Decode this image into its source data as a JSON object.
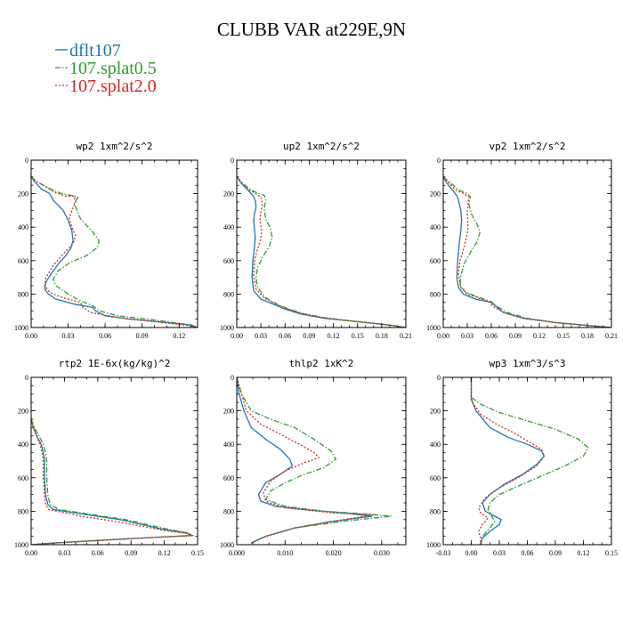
{
  "title": "CLUBB VAR at229E,9N",
  "legend": [
    {
      "label": "dflt107",
      "color": "#1f77b4",
      "dash": "solid"
    },
    {
      "label": "107.splat0.5",
      "color": "#2ca02c",
      "dash": "dashdot"
    },
    {
      "label": "107.splat2.0",
      "color": "#d62728",
      "dash": "dotted"
    }
  ],
  "chart_data": [
    {
      "type": "line",
      "title": "wp2  1xm^2/s^2",
      "xlim": [
        0,
        0.135
      ],
      "xticks": [
        "0.00",
        "0.03",
        "0.06",
        "0.09",
        "0.12"
      ],
      "xtick_values": [
        0,
        0.03,
        0.06,
        0.09,
        0.12
      ],
      "ylim": [
        1000,
        0
      ],
      "yticks": [
        "0",
        "200",
        "400",
        "600",
        "800",
        "1000"
      ],
      "series": [
        {
          "name": "dflt107",
          "x": [
            0.0,
            0.003,
            0.008,
            0.015,
            0.018,
            0.022,
            0.026,
            0.03,
            0.033,
            0.034,
            0.032,
            0.028,
            0.022,
            0.016,
            0.012,
            0.011,
            0.014,
            0.02,
            0.035,
            0.05,
            0.052,
            0.06,
            0.08,
            0.11,
            0.13,
            0.135
          ],
          "y": [
            100,
            130,
            170,
            200,
            240,
            270,
            300,
            360,
            420,
            480,
            530,
            570,
            620,
            680,
            730,
            770,
            800,
            830,
            860,
            880,
            900,
            930,
            950,
            970,
            985,
            1000
          ]
        },
        {
          "name": "107.splat0.5",
          "x": [
            0.0,
            0.005,
            0.015,
            0.025,
            0.032,
            0.038,
            0.035,
            0.04,
            0.05,
            0.055,
            0.054,
            0.045,
            0.032,
            0.022,
            0.018,
            0.02,
            0.03,
            0.04,
            0.05,
            0.055,
            0.07,
            0.1,
            0.125,
            0.135
          ],
          "y": [
            100,
            130,
            170,
            200,
            210,
            220,
            260,
            350,
            430,
            480,
            520,
            570,
            610,
            660,
            710,
            750,
            800,
            840,
            870,
            900,
            930,
            955,
            980,
            1000
          ]
        },
        {
          "name": "107.splat2.0",
          "x": [
            0.0,
            0.004,
            0.012,
            0.02,
            0.028,
            0.035,
            0.036,
            0.033,
            0.031,
            0.033,
            0.036,
            0.034,
            0.026,
            0.018,
            0.012,
            0.011,
            0.015,
            0.025,
            0.04,
            0.042,
            0.048,
            0.07,
            0.1,
            0.13,
            0.135
          ],
          "y": [
            100,
            125,
            160,
            195,
            215,
            215,
            250,
            300,
            350,
            400,
            450,
            500,
            560,
            630,
            700,
            750,
            790,
            820,
            850,
            880,
            910,
            940,
            965,
            990,
            1000
          ]
        }
      ]
    },
    {
      "type": "line",
      "title": "up2  1xm^2/s^2",
      "xlim": [
        0,
        0.21
      ],
      "xticks": [
        "0.00",
        "0.03",
        "0.06",
        "0.09",
        "0.12",
        "0.15",
        "0.18",
        "0.21"
      ],
      "xtick_values": [
        0,
        0.03,
        0.06,
        0.09,
        0.12,
        0.15,
        0.18,
        0.21
      ],
      "ylim": [
        1000,
        0
      ],
      "yticks": [
        "0",
        "200",
        "400",
        "600",
        "800",
        "1000"
      ],
      "series": [
        {
          "name": "dflt107",
          "x": [
            0.0,
            0.006,
            0.014,
            0.02,
            0.023,
            0.024,
            0.022,
            0.021,
            0.022,
            0.023,
            0.022,
            0.02,
            0.019,
            0.021,
            0.03,
            0.045,
            0.06,
            0.08,
            0.11,
            0.15,
            0.19,
            0.21
          ],
          "y": [
            100,
            140,
            180,
            210,
            240,
            280,
            320,
            360,
            410,
            460,
            520,
            600,
            700,
            780,
            830,
            860,
            890,
            920,
            945,
            965,
            985,
            1000
          ]
        },
        {
          "name": "107.splat0.5",
          "x": [
            0.0,
            0.008,
            0.018,
            0.028,
            0.034,
            0.036,
            0.034,
            0.036,
            0.042,
            0.044,
            0.04,
            0.032,
            0.026,
            0.024,
            0.026,
            0.035,
            0.05,
            0.065,
            0.085,
            0.115,
            0.155,
            0.19,
            0.21
          ],
          "y": [
            100,
            140,
            180,
            200,
            210,
            240,
            290,
            350,
            410,
            460,
            520,
            580,
            640,
            700,
            760,
            820,
            860,
            890,
            920,
            945,
            968,
            986,
            1000
          ]
        },
        {
          "name": "107.splat2.0",
          "x": [
            0.0,
            0.007,
            0.016,
            0.024,
            0.03,
            0.032,
            0.03,
            0.029,
            0.031,
            0.03,
            0.026,
            0.022,
            0.021,
            0.024,
            0.033,
            0.046,
            0.06,
            0.08,
            0.11,
            0.15,
            0.19,
            0.21
          ],
          "y": [
            100,
            140,
            180,
            200,
            220,
            260,
            310,
            360,
            420,
            470,
            530,
            600,
            690,
            770,
            820,
            855,
            885,
            915,
            943,
            965,
            985,
            1000
          ]
        }
      ]
    },
    {
      "type": "line",
      "title": "vp2  1xm^2/s^2",
      "xlim": [
        0,
        0.21
      ],
      "xticks": [
        "0.00",
        "0.03",
        "0.06",
        "0.09",
        "0.12",
        "0.15",
        "0.18",
        "0.21"
      ],
      "xtick_values": [
        0,
        0.03,
        0.06,
        0.09,
        0.12,
        0.15,
        0.18,
        0.21
      ],
      "ylim": [
        1000,
        0
      ],
      "yticks": [
        "0",
        "200",
        "400",
        "600",
        "800",
        "1000"
      ],
      "series": [
        {
          "name": "dflt107",
          "x": [
            0.0,
            0.005,
            0.012,
            0.018,
            0.02,
            0.022,
            0.023,
            0.022,
            0.02,
            0.018,
            0.017,
            0.019,
            0.025,
            0.04,
            0.06,
            0.065,
            0.075,
            0.1,
            0.14,
            0.18,
            0.21
          ],
          "y": [
            100,
            140,
            180,
            220,
            260,
            300,
            360,
            420,
            500,
            600,
            700,
            760,
            800,
            830,
            850,
            870,
            910,
            945,
            970,
            988,
            1000
          ]
        },
        {
          "name": "107.splat0.5",
          "x": [
            0.0,
            0.01,
            0.02,
            0.03,
            0.034,
            0.032,
            0.035,
            0.042,
            0.046,
            0.042,
            0.034,
            0.026,
            0.022,
            0.021,
            0.028,
            0.045,
            0.06,
            0.066,
            0.08,
            0.105,
            0.14,
            0.18,
            0.21
          ],
          "y": [
            100,
            140,
            180,
            200,
            220,
            260,
            320,
            380,
            430,
            490,
            550,
            620,
            690,
            750,
            790,
            820,
            845,
            870,
            910,
            945,
            970,
            988,
            1000
          ]
        },
        {
          "name": "107.splat2.0",
          "x": [
            0.0,
            0.008,
            0.016,
            0.026,
            0.032,
            0.031,
            0.03,
            0.031,
            0.03,
            0.026,
            0.021,
            0.019,
            0.022,
            0.03,
            0.045,
            0.058,
            0.064,
            0.078,
            0.1,
            0.14,
            0.18,
            0.21
          ],
          "y": [
            100,
            140,
            180,
            200,
            220,
            260,
            320,
            380,
            440,
            520,
            600,
            680,
            760,
            800,
            825,
            850,
            880,
            915,
            945,
            970,
            988,
            1000
          ]
        }
      ]
    },
    {
      "type": "line",
      "title": "rtp2  1E-6x(kg/kg)^2",
      "xlim": [
        0,
        0.15
      ],
      "xticks": [
        "0.00",
        "0.03",
        "0.06",
        "0.09",
        "0.12",
        "0.15"
      ],
      "xtick_values": [
        0,
        0.03,
        0.06,
        0.09,
        0.12,
        0.15
      ],
      "ylim": [
        1000,
        0
      ],
      "yticks": [
        "0",
        "200",
        "400",
        "600",
        "800",
        "1000"
      ],
      "series": [
        {
          "name": "dflt107",
          "x": [
            0.0,
            0.002,
            0.005,
            0.009,
            0.011,
            0.012,
            0.012,
            0.013,
            0.015,
            0.02,
            0.05,
            0.08,
            0.1,
            0.12,
            0.14,
            0.145,
            0.1,
            0.06,
            0.02,
            0.0
          ],
          "y": [
            250,
            300,
            350,
            400,
            450,
            500,
            600,
            700,
            760,
            790,
            820,
            850,
            880,
            910,
            930,
            945,
            960,
            975,
            990,
            1000
          ]
        },
        {
          "name": "107.splat0.5",
          "x": [
            0.0,
            0.003,
            0.007,
            0.011,
            0.013,
            0.014,
            0.014,
            0.015,
            0.017,
            0.025,
            0.055,
            0.085,
            0.105,
            0.125,
            0.142,
            0.146,
            0.1,
            0.06,
            0.02,
            0.0
          ],
          "y": [
            250,
            300,
            350,
            400,
            450,
            500,
            600,
            700,
            760,
            790,
            820,
            850,
            880,
            910,
            930,
            945,
            960,
            975,
            990,
            1000
          ]
        },
        {
          "name": "107.splat2.0",
          "x": [
            0.0,
            0.002,
            0.005,
            0.008,
            0.01,
            0.011,
            0.011,
            0.012,
            0.013,
            0.016,
            0.045,
            0.075,
            0.1,
            0.12,
            0.14,
            0.145,
            0.1,
            0.06,
            0.02,
            0.0
          ],
          "y": [
            250,
            300,
            350,
            400,
            450,
            500,
            600,
            700,
            760,
            790,
            830,
            860,
            890,
            915,
            932,
            945,
            960,
            975,
            990,
            1000
          ]
        }
      ]
    },
    {
      "type": "line",
      "title": "thlp2  1xK^2",
      "xlim": [
        0,
        0.035
      ],
      "xticks": [
        "0.000",
        "0.010",
        "0.020",
        "0.030"
      ],
      "xtick_values": [
        0,
        0.01,
        0.02,
        0.03
      ],
      "ylim": [
        1000,
        0
      ],
      "yticks": [
        "0",
        "200",
        "400",
        "600",
        "800",
        "1000"
      ],
      "series": [
        {
          "name": "dflt107",
          "x": [
            0.0,
            0.0005,
            0.0015,
            0.003,
            0.006,
            0.009,
            0.011,
            0.0115,
            0.009,
            0.006,
            0.0045,
            0.005,
            0.008,
            0.014,
            0.022,
            0.028,
            0.02,
            0.012,
            0.006,
            0.003
          ],
          "y": [
            0,
            100,
            200,
            300,
            370,
            430,
            490,
            530,
            580,
            630,
            700,
            740,
            770,
            790,
            810,
            830,
            860,
            900,
            950,
            990
          ]
        },
        {
          "name": "107.splat0.5",
          "x": [
            0.0,
            0.001,
            0.003,
            0.007,
            0.012,
            0.016,
            0.0195,
            0.0205,
            0.018,
            0.014,
            0.01,
            0.007,
            0.006,
            0.01,
            0.018,
            0.026,
            0.032,
            0.022,
            0.012,
            0.006,
            0.003
          ],
          "y": [
            0,
            100,
            200,
            250,
            300,
            370,
            440,
            490,
            540,
            580,
            630,
            680,
            730,
            770,
            800,
            815,
            830,
            860,
            900,
            950,
            990
          ]
        },
        {
          "name": "107.splat2.0",
          "x": [
            0.0,
            0.001,
            0.002,
            0.005,
            0.009,
            0.013,
            0.016,
            0.017,
            0.014,
            0.01,
            0.007,
            0.0055,
            0.006,
            0.01,
            0.02,
            0.0285,
            0.02,
            0.012,
            0.006,
            0.003
          ],
          "y": [
            0,
            100,
            200,
            280,
            340,
            400,
            450,
            480,
            510,
            560,
            620,
            690,
            740,
            780,
            810,
            820,
            860,
            900,
            950,
            990
          ]
        }
      ]
    },
    {
      "type": "line",
      "title": "wp3  1xm^3/s^3",
      "xlim": [
        -0.03,
        0.15
      ],
      "xticks": [
        "-0.03",
        "0.00",
        "0.03",
        "0.06",
        "0.09",
        "0.12",
        "0.15"
      ],
      "xtick_values": [
        -0.03,
        0.0,
        0.03,
        0.06,
        0.09,
        0.12,
        0.15
      ],
      "ylim": [
        1000,
        0
      ],
      "yticks": [
        "0",
        "200",
        "400",
        "600",
        "800",
        "1000"
      ],
      "series": [
        {
          "name": "dflt107",
          "x": [
            0.0,
            0.0,
            0.005,
            0.02,
            0.04,
            0.06,
            0.075,
            0.078,
            0.07,
            0.055,
            0.035,
            0.02,
            0.012,
            0.015,
            0.025,
            0.032,
            0.03,
            0.02,
            0.012,
            0.01
          ],
          "y": [
            0,
            130,
            200,
            300,
            360,
            400,
            440,
            470,
            520,
            580,
            640,
            700,
            750,
            800,
            830,
            850,
            880,
            920,
            960,
            1000
          ]
        },
        {
          "name": "107.splat0.5",
          "x": [
            0.0,
            0.0,
            0.01,
            0.03,
            0.06,
            0.09,
            0.115,
            0.125,
            0.12,
            0.1,
            0.075,
            0.05,
            0.03,
            0.02,
            0.018,
            0.022,
            0.025,
            0.02,
            0.012,
            0.01
          ],
          "y": [
            0,
            120,
            160,
            210,
            260,
            310,
            370,
            420,
            470,
            530,
            590,
            650,
            700,
            750,
            790,
            830,
            860,
            900,
            950,
            1000
          ]
        },
        {
          "name": "107.splat2.0",
          "x": [
            0.0,
            0.0,
            0.01,
            0.03,
            0.045,
            0.06,
            0.075,
            0.078,
            0.07,
            0.05,
            0.03,
            0.015,
            0.008,
            0.01,
            0.018,
            0.012,
            0.008,
            0.01,
            0.01
          ],
          "y": [
            0,
            140,
            220,
            290,
            330,
            380,
            430,
            470,
            530,
            600,
            660,
            720,
            780,
            810,
            840,
            880,
            920,
            960,
            1000
          ]
        }
      ]
    }
  ]
}
